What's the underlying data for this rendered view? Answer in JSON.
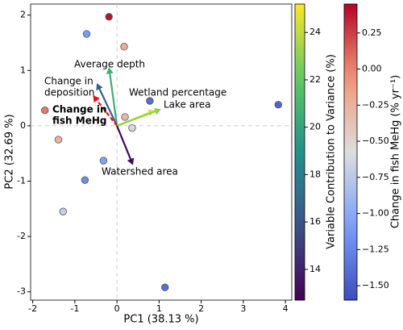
{
  "chart_data": {
    "type": "scatter",
    "xlabel": "PC1 (38.13 %)",
    "ylabel": "PC2 (32.69 %)",
    "xlim": [
      -2.05,
      4.15
    ],
    "ylim": [
      -3.15,
      2.2
    ],
    "xticks": [
      -2,
      -1,
      0,
      1,
      2,
      3,
      4
    ],
    "yticks": [
      -3,
      -2,
      -1,
      0,
      1,
      2
    ],
    "zero_lines": true,
    "points": {
      "x": [
        -0.19,
        -0.72,
        0.17,
        -1.71,
        0.19,
        0.78,
        3.83,
        0.36,
        -1.39,
        -0.32,
        -0.76,
        -1.28,
        1.14
      ],
      "y": [
        1.97,
        1.66,
        1.43,
        0.28,
        0.16,
        0.45,
        0.38,
        -0.04,
        -0.25,
        -0.63,
        -0.98,
        -1.55,
        -2.92
      ],
      "mehg": [
        0.4,
        -1.1,
        -0.2,
        0.05,
        -0.3,
        -1.4,
        -1.45,
        -0.6,
        -0.25,
        -1.05,
        -1.2,
        -0.7,
        -1.4
      ]
    },
    "loadings": [
      {
        "label": [
          "Average depth"
        ],
        "x": -0.19,
        "y": 1.06,
        "contribution": 20.5
      },
      {
        "label": [
          "Change in",
          "deposition"
        ],
        "x": -0.48,
        "y": 0.77,
        "contribution": 16.5
      },
      {
        "label": [
          "Change in",
          "fish MeHg"
        ],
        "x": -0.57,
        "y": 0.55,
        "color": "#e8110f",
        "dashed": true
      },
      {
        "label": [
          "Wetland percentage"
        ],
        "x": 0.9,
        "y": 0.28,
        "contribution": 24.5
      },
      {
        "label": [
          "Lake area"
        ],
        "x": 1.05,
        "y": 0.3,
        "contribution": 23
      },
      {
        "label": [
          "Watershed area"
        ],
        "x": 0.38,
        "y": -0.71,
        "contribution": 13
      }
    ],
    "contribution_colorbar": {
      "label": "Variable Contribution to Variance (%)",
      "colormap": "viridis",
      "lim": [
        12.7,
        25.2
      ],
      "ticks": [
        14,
        16,
        18,
        20,
        22,
        24
      ]
    },
    "mehg_colorbar": {
      "label": "Change in fish MeHg (% yr⁻¹)",
      "colormap": "coolwarm",
      "lim": [
        -1.6,
        0.45
      ],
      "ticks": [
        {
          "value": -1.5,
          "label": "−1.50"
        },
        {
          "value": -1.25,
          "label": "−1.25"
        },
        {
          "value": -1,
          "label": "−1.00"
        },
        {
          "value": -0.75,
          "label": "−0.75"
        },
        {
          "value": -0.5,
          "label": "−0.50"
        },
        {
          "value": -0.25,
          "label": "−0.25"
        },
        {
          "value": 0,
          "label": "0.00"
        },
        {
          "value": 0.25,
          "label": "0.25"
        }
      ]
    }
  }
}
